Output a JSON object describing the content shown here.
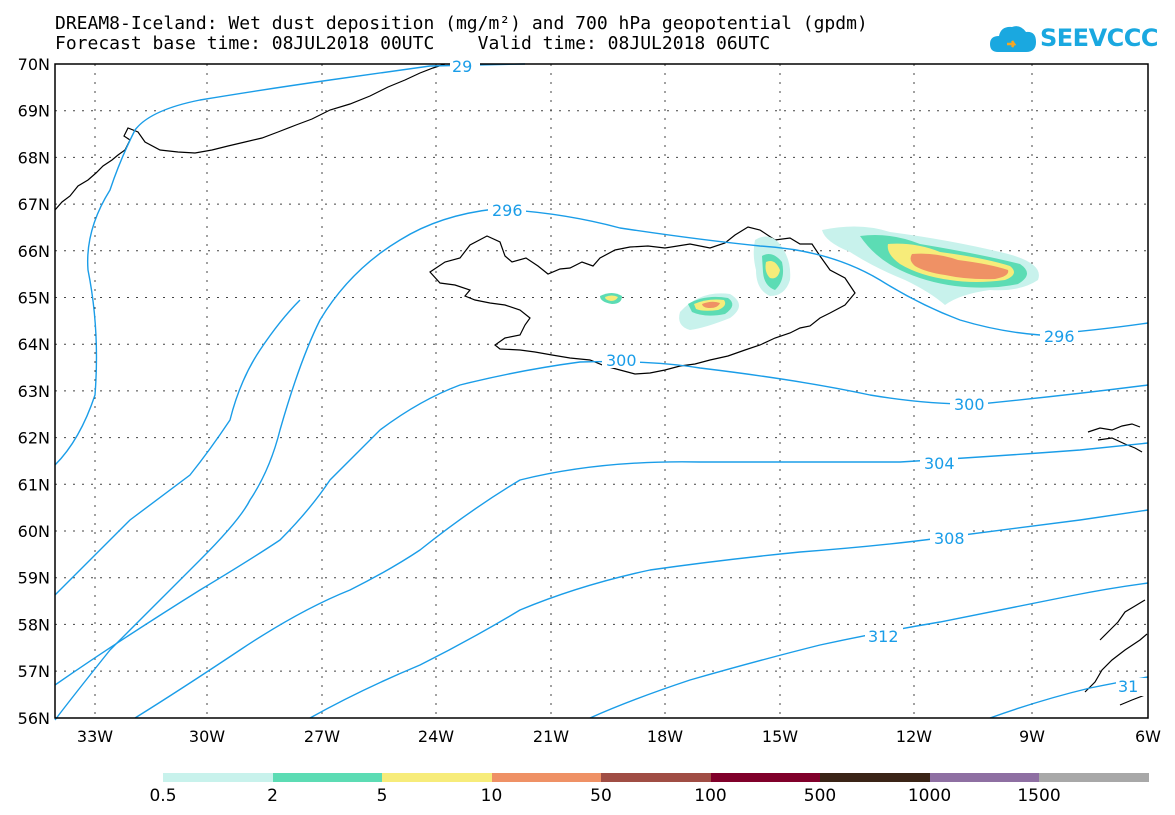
{
  "title_line1": "DREAM8-Iceland: Wet dust deposition (mg/m²) and 700 hPa geopotential (gpdm)",
  "title_line2": "Forecast base time: 08JUL2018 00UTC    Valid time: 08JUL2018 06UTC",
  "logo_text": "SEEVCCC",
  "colors": {
    "contour": "#1a9de8",
    "legend": [
      "#c8f2ec",
      "#5cdcb4",
      "#f7ec7a",
      "#ef9165",
      "#a04d44",
      "#80002a",
      "#3a2416",
      "#8e6fa2",
      "#a8a8a8"
    ]
  },
  "map": {
    "lon_labels": [
      "33W",
      "30W",
      "27W",
      "24W",
      "21W",
      "18W",
      "15W",
      "12W",
      "9W",
      "6W"
    ],
    "lat_labels": [
      "70N",
      "69N",
      "68N",
      "67N",
      "66N",
      "65N",
      "64N",
      "63N",
      "62N",
      "61N",
      "60N",
      "59N",
      "58N",
      "57N",
      "56N"
    ],
    "contour_labels": [
      "29",
      "296",
      "296",
      "300",
      "300",
      "304",
      "308",
      "312",
      "31"
    ]
  },
  "legend_labels": [
    "0.5",
    "2",
    "5",
    "10",
    "50",
    "100",
    "500",
    "1000",
    "1500"
  ]
}
